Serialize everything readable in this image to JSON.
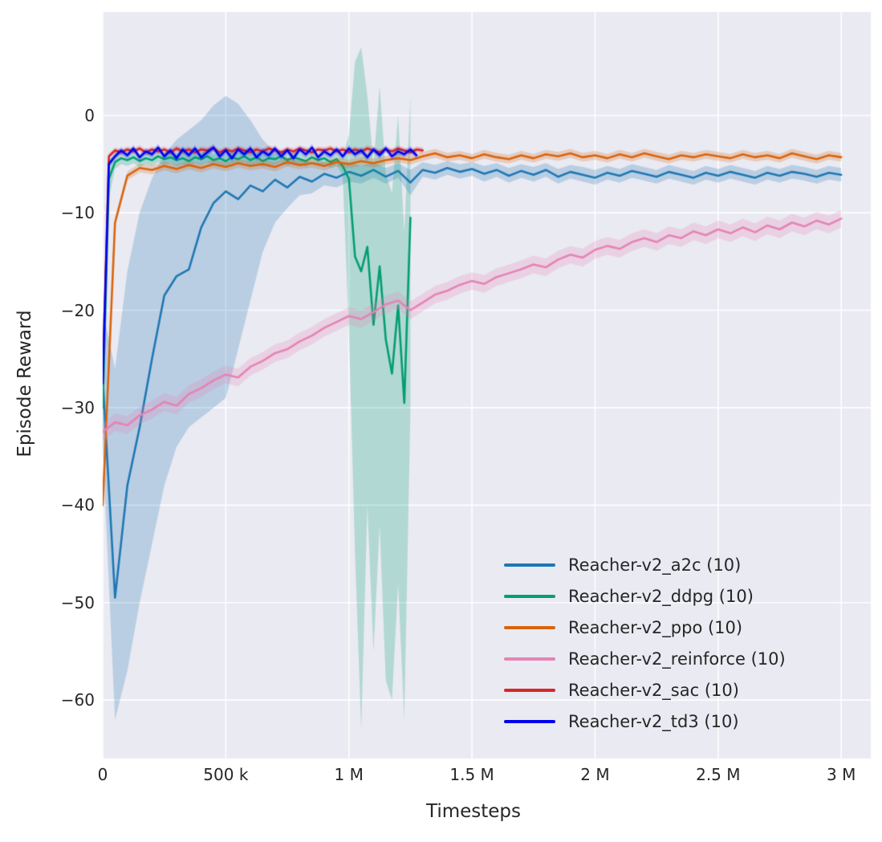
{
  "figure": {
    "background": "#ffffff",
    "panel_background": "#eaeaf2",
    "grid_color": "#ffffff",
    "text_color": "#262626"
  },
  "chart_data": {
    "type": "line",
    "title": "",
    "xlabel": "Timesteps",
    "ylabel": "Episode Reward",
    "xlim": [
      0,
      3120000
    ],
    "ylim": [
      -66,
      10.6
    ],
    "grid": true,
    "legend_position": "lower right",
    "band_alpha": 0.24,
    "x_ticks": {
      "values": [
        0,
        500000,
        1000000,
        1500000,
        2000000,
        2500000,
        3000000
      ],
      "labels": [
        "0",
        "500 k",
        "1 M",
        "1.5 M",
        "2 M",
        "2.5 M",
        "3 M"
      ]
    },
    "y_ticks": {
      "values": [
        0,
        -10,
        -20,
        -30,
        -40,
        -50,
        -60
      ],
      "labels": [
        "0",
        "−10",
        "−20",
        "−30",
        "−40",
        "−50",
        "−60"
      ]
    },
    "series": [
      {
        "name": "Reacher-v2_a2c (10)",
        "color": "#1f77b4",
        "x_start": 0,
        "x_step": 50000,
        "y": [
          -27,
          -49.5,
          -38,
          -32,
          -25,
          -18.5,
          -16.5,
          -15.8,
          -11.5,
          -9.0,
          -7.8,
          -8.6,
          -7.2,
          -7.8,
          -6.6,
          -7.4,
          -6.3,
          -6.8,
          -6.0,
          -6.4,
          -5.8,
          -6.2,
          -5.6,
          -6.3,
          -5.7,
          -6.9,
          -5.6,
          -5.9,
          -5.4,
          -5.8,
          -5.5,
          -6.0,
          -5.6,
          -6.2,
          -5.7,
          -6.1,
          -5.6,
          -6.3,
          -5.8,
          -6.1,
          -6.4,
          -5.9,
          -6.2,
          -5.7,
          -6.0,
          -6.3,
          -5.8,
          -6.1,
          -6.4,
          -5.9,
          -6.2,
          -5.8,
          -6.1,
          -6.4,
          -5.9,
          -6.2,
          -5.8,
          -6.0,
          -6.3,
          -5.9,
          -6.1
        ],
        "band_lo": [
          -34,
          -62,
          -57,
          -50,
          -44,
          -38,
          -34,
          -32,
          -31,
          -30,
          -29,
          -24,
          -19,
          -14,
          -11,
          -9.5,
          -8.2,
          -8.0,
          -7.2,
          -7.4,
          -6.8,
          -7.0,
          -6.4,
          -7.0,
          -6.4,
          -8.2,
          -6.3,
          -6.6,
          -6.1,
          -6.5,
          -6.2,
          -6.8,
          -6.3,
          -6.9,
          -6.4,
          -6.8,
          -6.3,
          -7.0,
          -6.5,
          -6.8,
          -7.1,
          -6.6,
          -6.9,
          -6.4,
          -6.7,
          -7.0,
          -6.5,
          -6.8,
          -7.1,
          -6.6,
          -6.9,
          -6.5,
          -6.8,
          -7.1,
          -6.6,
          -6.9,
          -6.5,
          -6.7,
          -7.0,
          -6.6,
          -6.8
        ],
        "band_hi": [
          -20,
          -26,
          -16,
          -10,
          -6.5,
          -4,
          -2.5,
          -1.5,
          -0.5,
          1.0,
          2.0,
          1.2,
          -0.5,
          -2.5,
          -3.8,
          -4.4,
          -4.6,
          -4.8,
          -4.8,
          -5.0,
          -4.8,
          -5.2,
          -4.8,
          -5.4,
          -4.9,
          -5.6,
          -4.8,
          -5.1,
          -4.7,
          -5.0,
          -4.8,
          -5.2,
          -4.9,
          -5.4,
          -5.0,
          -5.3,
          -4.9,
          -5.5,
          -5.1,
          -5.3,
          -5.6,
          -5.2,
          -5.5,
          -5.0,
          -5.3,
          -5.6,
          -5.1,
          -5.4,
          -5.7,
          -5.2,
          -5.5,
          -5.1,
          -5.4,
          -5.7,
          -5.2,
          -5.5,
          -5.1,
          -5.3,
          -5.6,
          -5.2,
          -5.4
        ]
      },
      {
        "name": "Reacher-v2_ddpg (10)",
        "color": "#029e73",
        "x_start": 0,
        "x_step": 25000,
        "y": [
          -30,
          -6.5,
          -4.8,
          -4.4,
          -4.6,
          -4.3,
          -4.7,
          -4.4,
          -4.6,
          -4.2,
          -4.5,
          -4.3,
          -4.6,
          -4.4,
          -4.7,
          -4.3,
          -4.5,
          -4.2,
          -4.6,
          -4.4,
          -4.7,
          -4.3,
          -4.5,
          -4.2,
          -4.6,
          -4.3,
          -4.7,
          -4.4,
          -4.5,
          -4.2,
          -4.6,
          -4.3,
          -4.5,
          -4.7,
          -4.3,
          -4.6,
          -4.4,
          -4.8,
          -4.5,
          -5.2,
          -6.5,
          -14.5,
          -16.0,
          -13.5,
          -21.5,
          -15.5,
          -23.0,
          -26.5,
          -19.5,
          -29.5,
          -10.5
        ],
        "band_lo": [
          -35,
          -8.5,
          -5.5,
          -5.0,
          -5.2,
          -4.9,
          -5.3,
          -5.0,
          -5.2,
          -4.8,
          -5.1,
          -4.9,
          -5.2,
          -5.0,
          -5.3,
          -4.9,
          -5.1,
          -4.8,
          -5.2,
          -5.0,
          -5.3,
          -4.9,
          -5.1,
          -4.8,
          -5.2,
          -4.9,
          -5.3,
          -5.0,
          -5.1,
          -4.8,
          -5.2,
          -4.9,
          -5.1,
          -5.3,
          -4.9,
          -5.2,
          -5.0,
          -5.4,
          -5.1,
          -6.2,
          -22,
          -45,
          -63,
          -40,
          -55,
          -42,
          -58,
          -60,
          -48,
          -62,
          -30
        ],
        "band_hi": [
          -25,
          -4.5,
          -4.1,
          -3.8,
          -4.0,
          -3.7,
          -4.1,
          -3.8,
          -4.0,
          -3.6,
          -3.9,
          -3.7,
          -4.0,
          -3.8,
          -4.1,
          -3.7,
          -3.9,
          -3.6,
          -4.0,
          -3.8,
          -4.1,
          -3.7,
          -3.9,
          -3.6,
          -4.0,
          -3.7,
          -4.1,
          -3.8,
          -3.9,
          -3.6,
          -4.0,
          -3.7,
          -3.9,
          -4.1,
          -3.7,
          -4.0,
          -3.8,
          -4.2,
          -3.9,
          -4.2,
          -2,
          5.5,
          7,
          2,
          -5,
          3,
          -6,
          -8,
          0,
          -12,
          2
        ]
      },
      {
        "name": "Reacher-v2_ppo (10)",
        "color": "#d9640d",
        "x_start": 0,
        "x_step": 50000,
        "y": [
          -40,
          -11,
          -6.2,
          -5.4,
          -5.6,
          -5.2,
          -5.5,
          -5.1,
          -5.4,
          -5.0,
          -5.3,
          -4.9,
          -5.2,
          -5.0,
          -5.3,
          -4.8,
          -5.1,
          -4.9,
          -5.2,
          -4.8,
          -5.0,
          -4.7,
          -4.9,
          -4.6,
          -4.4,
          -4.6,
          -4.2,
          -3.9,
          -4.3,
          -4.1,
          -4.4,
          -4.0,
          -4.3,
          -4.5,
          -4.1,
          -4.4,
          -4.0,
          -4.2,
          -3.9,
          -4.3,
          -4.1,
          -4.4,
          -4.0,
          -4.3,
          -3.9,
          -4.2,
          -4.5,
          -4.1,
          -4.3,
          -4.0,
          -4.2,
          -4.4,
          -4.0,
          -4.3,
          -4.1,
          -4.4,
          -3.9,
          -4.2,
          -4.5,
          -4.1,
          -4.3
        ],
        "band_halfwidth": 0.45
      },
      {
        "name": "Reacher-v2_reinforce (10)",
        "color": "#e583b5",
        "x_start": 0,
        "x_step": 50000,
        "y": [
          -32.5,
          -31.5,
          -31.8,
          -30.8,
          -30.2,
          -29.4,
          -29.8,
          -28.6,
          -28.0,
          -27.2,
          -26.6,
          -26.9,
          -25.8,
          -25.2,
          -24.4,
          -24.0,
          -23.2,
          -22.6,
          -21.8,
          -21.2,
          -20.6,
          -20.9,
          -20.2,
          -19.4,
          -19.0,
          -20.0,
          -19.2,
          -18.4,
          -18.0,
          -17.4,
          -17.0,
          -17.3,
          -16.6,
          -16.2,
          -15.8,
          -15.3,
          -15.6,
          -14.8,
          -14.3,
          -14.6,
          -13.8,
          -13.4,
          -13.7,
          -13.0,
          -12.6,
          -13.0,
          -12.3,
          -12.6,
          -11.9,
          -12.3,
          -11.7,
          -12.1,
          -11.5,
          -12.0,
          -11.3,
          -11.7,
          -11.0,
          -11.4,
          -10.8,
          -11.2,
          -10.6
        ],
        "band_halfwidth": 0.9
      },
      {
        "name": "Reacher-v2_sac (10)",
        "color": "#d62728",
        "x_start": 0,
        "x_step": 25000,
        "y": [
          -27,
          -4.2,
          -3.6,
          -3.8,
          -3.5,
          -3.7,
          -3.4,
          -3.8,
          -3.5,
          -3.7,
          -3.5,
          -3.8,
          -3.4,
          -3.7,
          -3.5,
          -3.8,
          -3.5,
          -3.6,
          -3.4,
          -3.8,
          -3.5,
          -3.7,
          -3.4,
          -3.6,
          -3.8,
          -3.5,
          -3.7,
          -3.4,
          -3.6,
          -3.8,
          -3.5,
          -3.7,
          -3.4,
          -3.6,
          -3.8,
          -3.5,
          -3.6,
          -3.4,
          -3.7,
          -3.5,
          -3.8,
          -3.5,
          -3.7,
          -3.4,
          -3.6,
          -3.8,
          -3.5,
          -3.7,
          -3.4,
          -3.6,
          -3.8,
          -3.5,
          -3.6
        ],
        "band_halfwidth": 0.3
      },
      {
        "name": "Reacher-v2_td3 (10)",
        "color": "#0000ee",
        "x_start": 0,
        "x_step": 25000,
        "y": [
          -27.5,
          -5.0,
          -4.2,
          -3.6,
          -4.1,
          -3.4,
          -4.3,
          -3.7,
          -4.0,
          -3.3,
          -4.2,
          -3.6,
          -4.4,
          -3.5,
          -4.1,
          -3.4,
          -4.3,
          -3.8,
          -3.3,
          -4.2,
          -3.6,
          -4.4,
          -3.5,
          -4.0,
          -3.4,
          -4.3,
          -3.7,
          -4.1,
          -3.4,
          -4.2,
          -3.6,
          -4.4,
          -3.5,
          -4.0,
          -3.3,
          -4.3,
          -3.7,
          -4.1,
          -3.5,
          -4.2,
          -3.4,
          -4.0,
          -3.6,
          -4.3,
          -3.5,
          -4.1,
          -3.4,
          -4.2,
          -3.7,
          -4.0,
          -3.5,
          -4.1
        ],
        "band_halfwidth": 0.35
      }
    ]
  }
}
